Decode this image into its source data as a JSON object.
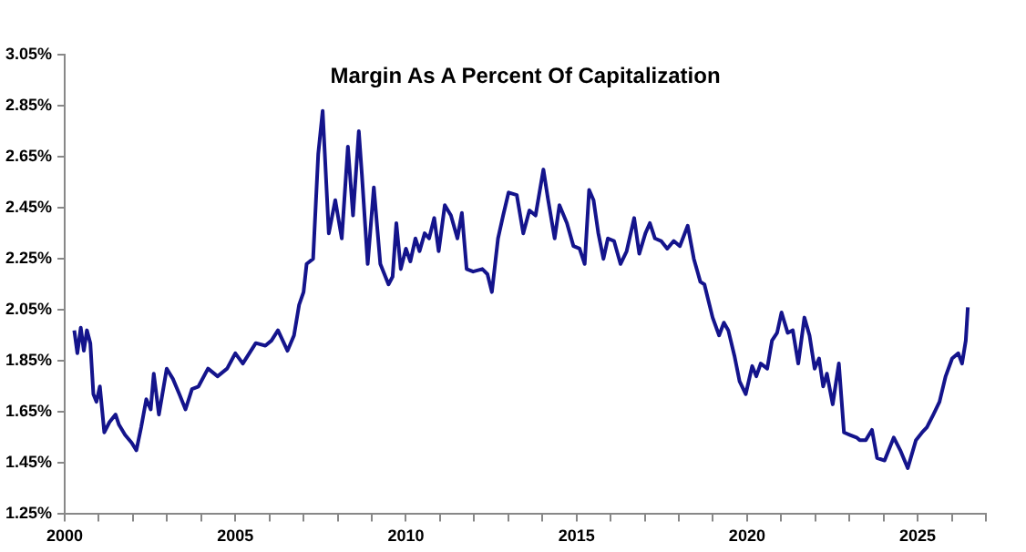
{
  "chart_data": {
    "type": "line",
    "title": "Margin As A Percent Of Capitalization",
    "xlim": [
      2000,
      2027
    ],
    "xticks": [
      2000,
      {
        "value": 2001,
        "label": null
      },
      {
        "value": 2002,
        "label": null
      },
      {
        "value": 2003,
        "label": null
      },
      {
        "value": 2004,
        "label": null
      },
      2005,
      {
        "value": 2006,
        "label": null
      },
      {
        "value": 2007,
        "label": null
      },
      {
        "value": 2008,
        "label": null
      },
      {
        "value": 2009,
        "label": null
      },
      2010,
      {
        "value": 2011,
        "label": null
      },
      {
        "value": 2012,
        "label": null
      },
      {
        "value": 2013,
        "label": null
      },
      {
        "value": 2014,
        "label": null
      },
      2015,
      {
        "value": 2016,
        "label": null
      },
      {
        "value": 2017,
        "label": null
      },
      {
        "value": 2018,
        "label": null
      },
      {
        "value": 2019,
        "label": null
      },
      2020,
      {
        "value": 2021,
        "label": null
      },
      {
        "value": 2022,
        "label": null
      },
      {
        "value": 2023,
        "label": null
      },
      {
        "value": 2024,
        "label": null
      },
      2025,
      {
        "value": 2026,
        "label": null
      },
      {
        "value": 2027,
        "label": null
      }
    ],
    "ylim": [
      1.25,
      3.05
    ],
    "yticks": [
      {
        "value": 1.25,
        "label": "1.25%"
      },
      {
        "value": 1.45,
        "label": "1.45%"
      },
      {
        "value": 1.65,
        "label": "1.65%"
      },
      {
        "value": 1.85,
        "label": "1.85%"
      },
      {
        "value": 2.05,
        "label": "2.05%"
      },
      {
        "value": 2.25,
        "label": "2.25%"
      },
      {
        "value": 2.45,
        "label": "2.45%"
      },
      {
        "value": 2.65,
        "label": "2.65%"
      },
      {
        "value": 2.85,
        "label": "2.85%"
      },
      {
        "value": 3.05,
        "label": "3.05%"
      }
    ],
    "grid": false,
    "legend": false,
    "marker": "none",
    "line_style": "solid",
    "series": [
      {
        "color": "#14148c",
        "x": [
          2000.28,
          2000.37,
          2000.47,
          2000.56,
          2000.65,
          2000.75,
          2000.84,
          2000.93,
          2001.03,
          2001.16,
          2001.31,
          2001.49,
          2001.59,
          2001.77,
          2001.96,
          2002.1,
          2002.24,
          2002.39,
          2002.52,
          2002.61,
          2002.76,
          2002.99,
          2003.17,
          2003.36,
          2003.54,
          2003.73,
          2003.92,
          2004.2,
          2004.48,
          2004.76,
          2005.0,
          2005.22,
          2005.41,
          2005.6,
          2005.88,
          2006.06,
          2006.25,
          2006.53,
          2006.72,
          2006.87,
          2007.0,
          2007.09,
          2007.28,
          2007.43,
          2007.56,
          2007.74,
          2007.93,
          2008.12,
          2008.3,
          2008.45,
          2008.62,
          2008.71,
          2008.88,
          2009.06,
          2009.25,
          2009.49,
          2009.61,
          2009.72,
          2009.85,
          2010.0,
          2010.13,
          2010.28,
          2010.4,
          2010.55,
          2010.68,
          2010.83,
          2010.96,
          2011.14,
          2011.32,
          2011.51,
          2011.64,
          2011.78,
          2011.97,
          2012.24,
          2012.39,
          2012.52,
          2012.7,
          2012.85,
          2013.01,
          2013.25,
          2013.44,
          2013.62,
          2013.8,
          2014.03,
          2014.17,
          2014.36,
          2014.5,
          2014.72,
          2014.91,
          2015.09,
          2015.24,
          2015.37,
          2015.5,
          2015.64,
          2015.79,
          2015.92,
          2016.1,
          2016.29,
          2016.47,
          2016.69,
          2016.84,
          2017.02,
          2017.15,
          2017.3,
          2017.48,
          2017.66,
          2017.85,
          2018.03,
          2018.26,
          2018.44,
          2018.63,
          2018.75,
          2018.86,
          2018.99,
          2019.18,
          2019.32,
          2019.45,
          2019.63,
          2019.78,
          2019.96,
          2020.15,
          2020.27,
          2020.4,
          2020.59,
          2020.73,
          2020.88,
          2021.01,
          2021.19,
          2021.34,
          2021.5,
          2021.68,
          2021.83,
          2021.98,
          2022.11,
          2022.23,
          2022.34,
          2022.51,
          2022.69,
          2022.84,
          2023.02,
          2023.21,
          2023.3,
          2023.48,
          2023.66,
          2023.81,
          2024.03,
          2024.3,
          2024.49,
          2024.71,
          2024.95,
          2025.13,
          2025.27,
          2025.46,
          2025.64,
          2025.82,
          2026.01,
          2026.19,
          2026.3,
          2026.41,
          2026.47
        ],
        "values": [
          1.97,
          1.88,
          1.98,
          1.89,
          1.97,
          1.92,
          1.72,
          1.69,
          1.75,
          1.57,
          1.61,
          1.64,
          1.6,
          1.56,
          1.53,
          1.5,
          1.59,
          1.7,
          1.66,
          1.8,
          1.64,
          1.82,
          1.78,
          1.72,
          1.66,
          1.74,
          1.75,
          1.82,
          1.79,
          1.82,
          1.88,
          1.84,
          1.88,
          1.92,
          1.91,
          1.93,
          1.97,
          1.89,
          1.95,
          2.07,
          2.12,
          2.23,
          2.25,
          2.66,
          2.83,
          2.35,
          2.48,
          2.33,
          2.69,
          2.42,
          2.75,
          2.58,
          2.23,
          2.53,
          2.23,
          2.15,
          2.18,
          2.39,
          2.21,
          2.29,
          2.24,
          2.33,
          2.28,
          2.35,
          2.33,
          2.41,
          2.28,
          2.46,
          2.42,
          2.33,
          2.43,
          2.21,
          2.2,
          2.21,
          2.19,
          2.12,
          2.33,
          2.42,
          2.51,
          2.5,
          2.35,
          2.44,
          2.42,
          2.6,
          2.48,
          2.33,
          2.46,
          2.39,
          2.3,
          2.29,
          2.23,
          2.52,
          2.48,
          2.35,
          2.25,
          2.33,
          2.32,
          2.23,
          2.28,
          2.41,
          2.27,
          2.35,
          2.39,
          2.33,
          2.32,
          2.29,
          2.32,
          2.3,
          2.38,
          2.25,
          2.16,
          2.15,
          2.09,
          2.02,
          1.95,
          2.0,
          1.97,
          1.87,
          1.77,
          1.72,
          1.83,
          1.79,
          1.84,
          1.82,
          1.93,
          1.96,
          2.04,
          1.96,
          1.97,
          1.84,
          2.02,
          1.95,
          1.82,
          1.86,
          1.75,
          1.8,
          1.68,
          1.84,
          1.57,
          1.56,
          1.55,
          1.54,
          1.54,
          1.58,
          1.47,
          1.46,
          1.55,
          1.5,
          1.43,
          1.54,
          1.57,
          1.59,
          1.64,
          1.69,
          1.79,
          1.86,
          1.88,
          1.84,
          1.93,
          2.06
        ]
      }
    ]
  }
}
